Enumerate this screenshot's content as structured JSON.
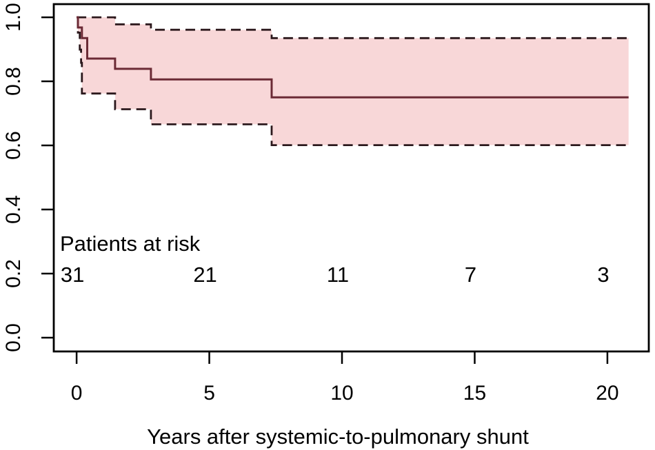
{
  "chart_data": {
    "type": "line",
    "subtype": "kaplan-meier-step",
    "title": "",
    "xlabel": "Years after systemic-to-pulmonary shunt",
    "ylabel": "",
    "xlim": [
      -0.86,
      21.56
    ],
    "ylim": [
      -0.043,
      1.041
    ],
    "xticks": [
      0,
      5,
      10,
      15,
      20
    ],
    "yticks": [
      0.0,
      0.2,
      0.4,
      0.6,
      0.8,
      1.0
    ],
    "ytick_labels": [
      "0.0",
      "0.2",
      "0.4",
      "0.6",
      "0.8",
      "1.0"
    ],
    "grid": false,
    "legend": "none",
    "end_time": 20.8,
    "series": [
      {
        "name": "survival",
        "style": "solid",
        "points": [
          [
            0,
            1.0
          ],
          [
            0.05,
            0.968
          ],
          [
            0.2,
            0.935
          ],
          [
            0.4,
            0.871
          ],
          [
            1.45,
            0.839
          ],
          [
            2.8,
            0.806
          ],
          [
            7.35,
            0.75
          ]
        ]
      },
      {
        "name": "ci-upper",
        "style": "dashed",
        "points": [
          [
            0,
            1.0
          ],
          [
            1.45,
            0.978
          ],
          [
            2.8,
            0.961
          ],
          [
            7.35,
            0.935
          ]
        ]
      },
      {
        "name": "ci-lower",
        "style": "dashed",
        "points": [
          [
            0,
            1.0
          ],
          [
            0.05,
            0.952
          ],
          [
            0.12,
            0.899
          ],
          [
            0.17,
            0.858
          ],
          [
            0.2,
            0.762
          ],
          [
            1.45,
            0.713
          ],
          [
            2.8,
            0.666
          ],
          [
            7.35,
            0.601
          ]
        ]
      }
    ],
    "at_risk": {
      "label": "Patients at risk",
      "times": [
        0,
        5,
        10,
        15,
        20
      ],
      "counts": [
        31,
        21,
        11,
        7,
        3
      ]
    },
    "colors": {
      "band_fill": "#f8d7d8",
      "curve": "#6b2a35",
      "ci_line": "#2b181c",
      "axis": "#000000",
      "text": "#000000"
    }
  }
}
